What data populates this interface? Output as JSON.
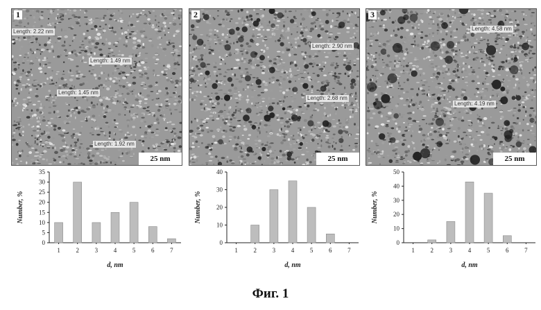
{
  "panels": [
    {
      "label": "1",
      "scale_bar": "25 nm",
      "measurements": [
        "Length: 2.22 nm",
        "Length: 1.49 nm",
        "Length: 1.45 nm",
        "Length: 1.92 nm"
      ],
      "dark_spots": false
    },
    {
      "label": "2",
      "scale_bar": "25 nm",
      "measurements": [
        "Length: 2.90 nm",
        "Length: 2.68 nm"
      ],
      "dark_spots": true
    },
    {
      "label": "3",
      "scale_bar": "25 nm",
      "measurements": [
        "Length: 4.58 nm",
        "Length: 4.19 nm"
      ],
      "dark_spots": true
    }
  ],
  "chart_data": [
    {
      "type": "bar",
      "categories": [
        "1",
        "2",
        "3",
        "4",
        "5",
        "6",
        "7"
      ],
      "values": [
        10,
        30,
        10,
        15,
        20,
        8,
        2
      ],
      "xlabel": "d, nm",
      "ylabel": "Number, %",
      "ylim": [
        0,
        35
      ],
      "yticks": [
        "0",
        "5",
        "10",
        "15",
        "20",
        "25",
        "30",
        "35"
      ],
      "grid": false
    },
    {
      "type": "bar",
      "categories": [
        "1",
        "2",
        "3",
        "4",
        "5",
        "6",
        "7"
      ],
      "values": [
        0,
        10,
        30,
        35,
        20,
        5,
        0
      ],
      "xlabel": "d, nm",
      "ylabel": "Number, %",
      "ylim": [
        0,
        40
      ],
      "yticks": [
        "0",
        "10",
        "20",
        "30",
        "40"
      ],
      "grid": false
    },
    {
      "type": "bar",
      "categories": [
        "1",
        "2",
        "3",
        "4",
        "5",
        "6",
        "7"
      ],
      "values": [
        0,
        2,
        15,
        43,
        35,
        5,
        0
      ],
      "xlabel": "d, nm",
      "ylabel": "Number, %",
      "ylim": [
        0,
        50
      ],
      "yticks": [
        "0",
        "10",
        "20",
        "30",
        "40",
        "50"
      ],
      "grid": false
    }
  ],
  "caption": "Фиг. 1",
  "colors": {
    "bar_fill": "#bdbdbd",
    "bar_stroke": "#8a8a8a",
    "axis": "#222222",
    "micrograph_base": "#9a9a9a"
  }
}
